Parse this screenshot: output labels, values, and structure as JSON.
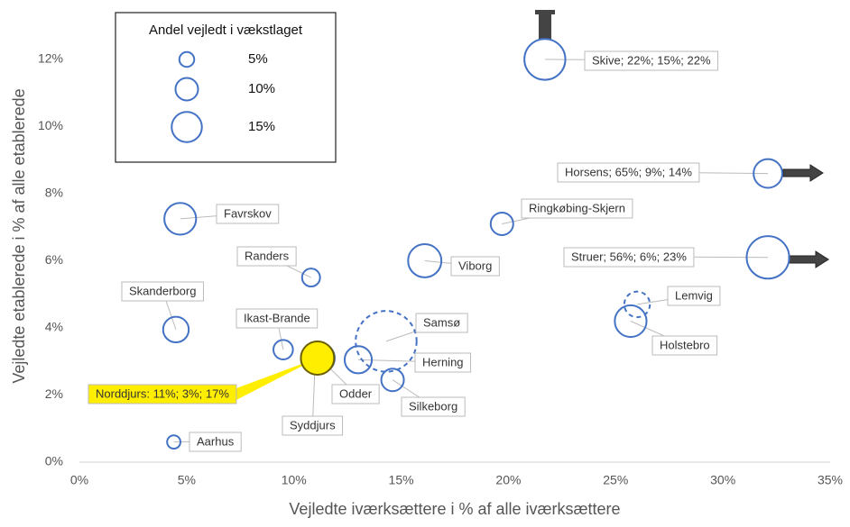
{
  "chart_data": {
    "type": "bubble",
    "xlabel": "Vejledte iværksættere i % af alle iværksættere",
    "ylabel": "Vejledte etablerede i % af alle etablerede",
    "xlim": [
      0,
      35
    ],
    "xticks": [
      {
        "value": 0,
        "label": "0%"
      },
      {
        "value": 5,
        "label": "5%"
      },
      {
        "value": 10,
        "label": "10%"
      },
      {
        "value": 15,
        "label": "15%"
      },
      {
        "value": 20,
        "label": "20%"
      },
      {
        "value": 25,
        "label": "25%"
      },
      {
        "value": 30,
        "label": "30%"
      },
      {
        "value": 35,
        "label": "35%"
      }
    ],
    "ylim": [
      0,
      13.5
    ],
    "yticks": [
      {
        "value": 0,
        "label": "0%"
      },
      {
        "value": 2,
        "label": "2%"
      },
      {
        "value": 4,
        "label": "4%"
      },
      {
        "value": 6,
        "label": "6%"
      },
      {
        "value": 8,
        "label": "8%"
      },
      {
        "value": 10,
        "label": "10%"
      },
      {
        "value": 12,
        "label": "12%"
      }
    ],
    "color": "#4472c4",
    "highlight_color": "#ffee00",
    "legend": {
      "title": "Andel vejledt i vækstlaget",
      "sizes": [
        {
          "value": 5,
          "label": "5%"
        },
        {
          "value": 10,
          "label": "10%"
        },
        {
          "value": 15,
          "label": "15%"
        }
      ]
    },
    "points": [
      {
        "label": "Skive; 22%; 15%; 22%",
        "x": 21.7,
        "y": 12.0,
        "size": 22
      },
      {
        "label": "Horsens; 65%;  9%;  14%",
        "x": 32.1,
        "y": 8.6,
        "size": 14
      },
      {
        "label": "Struer; 56%;  6%;  23%",
        "x": 32.1,
        "y": 6.1,
        "size": 23
      },
      {
        "label": "Favrskov",
        "x": 4.7,
        "y": 7.25,
        "size": 16
      },
      {
        "label": "Ringkøbing-Skjern",
        "x": 19.7,
        "y": 7.1,
        "size": 10
      },
      {
        "label": "Viborg",
        "x": 16.1,
        "y": 6.0,
        "size": 17
      },
      {
        "label": "Randers",
        "x": 10.8,
        "y": 5.5,
        "size": 7
      },
      {
        "label": "Skanderborg",
        "x": 4.5,
        "y": 3.95,
        "size": 12
      },
      {
        "label": "Ikast-Brande",
        "x": 9.5,
        "y": 3.35,
        "size": 8
      },
      {
        "label": "Samsø",
        "x": 14.3,
        "y": 3.6,
        "size": 35,
        "dashed": true
      },
      {
        "label": "Herning",
        "x": 13.0,
        "y": 3.05,
        "size": 13
      },
      {
        "label": "Silkeborg",
        "x": 14.6,
        "y": 2.45,
        "size": 10
      },
      {
        "label": "Lemvig",
        "x": 26.0,
        "y": 4.7,
        "size": 12,
        "dashed": true
      },
      {
        "label": "Holstebro",
        "x": 25.7,
        "y": 4.2,
        "size": 16
      },
      {
        "label": "Aarhus",
        "x": 4.4,
        "y": 0.6,
        "size": 4
      },
      {
        "label": "Syddjurs",
        "x": 11.0,
        "y": 3.1,
        "size": 14
      },
      {
        "label": "Odder",
        "x": 11.2,
        "y": 3.1,
        "size": 15
      },
      {
        "label": "Norddjurs: 11%; 3%; 17%",
        "x": 11.1,
        "y": 3.1,
        "size": 17,
        "highlight": true
      }
    ]
  }
}
